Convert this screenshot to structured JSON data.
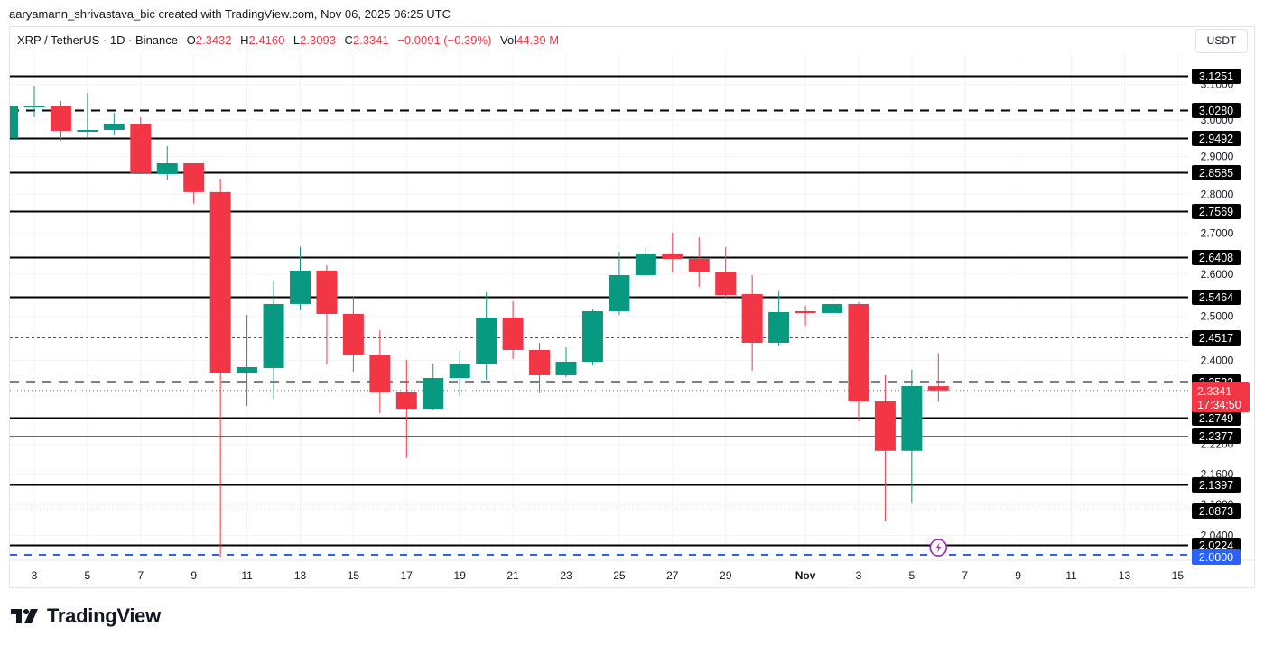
{
  "caption": "aaryamann_shrivastava_bic created with TradingView.com, Nov 06, 2025 06:25 UTC",
  "legend": {
    "symbol": "XRP / TetherUS · 1D · Binance",
    "open_label": "O",
    "open": "2.3432",
    "high_label": "H",
    "high": "2.4160",
    "low_label": "L",
    "low": "2.3093",
    "close_label": "C",
    "close": "2.3341",
    "change": "−0.0091 (−0.39%)",
    "vol_label": "Vol",
    "vol": "44.39 M"
  },
  "currency_button": "USDT",
  "brand": "TradingView",
  "colors": {
    "up": "#089981",
    "down": "#f23645",
    "level_line": "#000000",
    "blue_line": "#2962ff",
    "alert_purple": "#9c27b0"
  },
  "chart_data": {
    "type": "candlestick",
    "title": "XRP / TetherUS · 1D · Binance",
    "xlabel": "",
    "ylabel": "USDT",
    "scale": "log",
    "ylim": [
      1.9988,
      3.16
    ],
    "x_ticks": [
      "3",
      "5",
      "7",
      "9",
      "11",
      "13",
      "15",
      "17",
      "19",
      "21",
      "23",
      "25",
      "27",
      "29",
      "Nov",
      "3",
      "5",
      "7",
      "9",
      "11",
      "13",
      "15"
    ],
    "y_ticks": [
      "3.1000",
      "3.0000",
      "2.9000",
      "2.8000",
      "2.7000",
      "2.6000",
      "2.5000",
      "2.4000",
      "2.2200",
      "2.1600",
      "2.1000",
      "2.0400"
    ],
    "candles": [
      {
        "date": "Oct 2",
        "o": 2.9499,
        "h": 3.04,
        "l": 2.9499,
        "c": 3.04
      },
      {
        "date": "Oct 3",
        "o": 3.04,
        "h": 3.0965,
        "l": 3.0071,
        "c": 3.04
      },
      {
        "date": "Oct 4",
        "o": 3.04,
        "h": 3.0527,
        "l": 2.9425,
        "c": 2.9697
      },
      {
        "date": "Oct 5",
        "o": 2.9721,
        "h": 3.0758,
        "l": 2.9524,
        "c": 2.9721
      },
      {
        "date": "Oct 6",
        "o": 2.9721,
        "h": 3.0197,
        "l": 2.9573,
        "c": 2.9896
      },
      {
        "date": "Oct 7",
        "o": 2.9896,
        "h": 3.0071,
        "l": 2.8552,
        "c": 2.8552
      },
      {
        "date": "Oct 8",
        "o": 2.8528,
        "h": 2.9277,
        "l": 2.8362,
        "c": 2.8815
      },
      {
        "date": "Oct 9",
        "o": 2.8815,
        "h": 2.8815,
        "l": 2.7752,
        "c": 2.8056
      },
      {
        "date": "Oct 10",
        "o": 2.8056,
        "h": 2.8409,
        "l": 1.9988,
        "c": 2.373
      },
      {
        "date": "Oct 11",
        "o": 2.373,
        "h": 2.5036,
        "l": 2.3006,
        "c": 2.385
      },
      {
        "date": "Oct 12",
        "o": 2.383,
        "h": 2.5845,
        "l": 2.3161,
        "c": 2.5289
      },
      {
        "date": "Oct 13",
        "o": 2.5289,
        "h": 2.6658,
        "l": 2.5141,
        "c": 2.6083
      },
      {
        "date": "Oct 14",
        "o": 2.6083,
        "h": 2.6215,
        "l": 2.391,
        "c": 2.5057
      },
      {
        "date": "Oct 15",
        "o": 2.5057,
        "h": 2.5458,
        "l": 2.375,
        "c": 2.4131
      },
      {
        "date": "Oct 16",
        "o": 2.4131,
        "h": 2.4683,
        "l": 2.2853,
        "c": 2.3297
      },
      {
        "date": "Oct 17",
        "o": 2.3297,
        "h": 2.401,
        "l": 2.1921,
        "c": 2.2949
      },
      {
        "date": "Oct 18",
        "o": 2.2949,
        "h": 2.393,
        "l": 2.291,
        "c": 2.3611
      },
      {
        "date": "Oct 19",
        "o": 2.3611,
        "h": 2.4212,
        "l": 2.3219,
        "c": 2.391
      },
      {
        "date": "Oct 20",
        "o": 2.391,
        "h": 2.5565,
        "l": 2.3572,
        "c": 2.4973
      },
      {
        "date": "Oct 21",
        "o": 2.4973,
        "h": 2.5352,
        "l": 2.403,
        "c": 2.4232
      },
      {
        "date": "Oct 22",
        "o": 2.4232,
        "h": 2.4395,
        "l": 2.3278,
        "c": 2.3671
      },
      {
        "date": "Oct 23",
        "o": 2.3671,
        "h": 2.4293,
        "l": 2.3631,
        "c": 2.397
      },
      {
        "date": "Oct 24",
        "o": 2.397,
        "h": 2.5162,
        "l": 2.389,
        "c": 2.512
      },
      {
        "date": "Oct 25",
        "o": 2.512,
        "h": 2.6546,
        "l": 2.5036,
        "c": 2.5975
      },
      {
        "date": "Oct 26",
        "o": 2.5975,
        "h": 2.6658,
        "l": 2.5953,
        "c": 2.648
      },
      {
        "date": "Oct 27",
        "o": 2.648,
        "h": 2.7017,
        "l": 2.604,
        "c": 2.6369
      },
      {
        "date": "Oct 28",
        "o": 2.6369,
        "h": 2.6904,
        "l": 2.5694,
        "c": 2.6062
      },
      {
        "date": "Oct 29",
        "o": 2.6062,
        "h": 2.6658,
        "l": 2.5395,
        "c": 2.5501
      },
      {
        "date": "Oct 30",
        "o": 2.5523,
        "h": 2.5975,
        "l": 2.377,
        "c": 2.4395
      },
      {
        "date": "Oct 31",
        "o": 2.4395,
        "h": 2.5586,
        "l": 2.4334,
        "c": 2.5099
      },
      {
        "date": "Nov 1",
        "o": 2.512,
        "h": 2.5247,
        "l": 2.4786,
        "c": 2.5078
      },
      {
        "date": "Nov 2",
        "o": 2.5078,
        "h": 2.5586,
        "l": 2.4807,
        "c": 2.5289
      },
      {
        "date": "Nov 3",
        "o": 2.5289,
        "h": 2.5331,
        "l": 2.2682,
        "c": 2.3102
      },
      {
        "date": "Nov 4",
        "o": 2.3102,
        "h": 2.3671,
        "l": 2.0669,
        "c": 2.2068
      },
      {
        "date": "Nov 5",
        "o": 2.2068,
        "h": 2.379,
        "l": 2.1018,
        "c": 2.3434
      },
      {
        "date": "Nov 6",
        "o": 2.3432,
        "h": 2.416,
        "l": 2.3093,
        "c": 2.3341
      }
    ],
    "levels": [
      {
        "price": 3.1251,
        "label": "3.1251",
        "style": "solid"
      },
      {
        "price": 3.028,
        "label": "3.0280",
        "style": "dashed"
      },
      {
        "price": 2.9492,
        "label": "2.9492",
        "style": "solid"
      },
      {
        "price": 2.8585,
        "label": "2.8585",
        "style": "solid"
      },
      {
        "price": 2.7569,
        "label": "2.7569",
        "style": "solid"
      },
      {
        "price": 2.6408,
        "label": "2.6408",
        "style": "solid"
      },
      {
        "price": 2.5464,
        "label": "2.5464",
        "style": "solid"
      },
      {
        "price": 2.4517,
        "label": "2.4517",
        "style": "dotted"
      },
      {
        "price": 2.3523,
        "label": "2.3523",
        "style": "dashed"
      },
      {
        "price": 2.2749,
        "label": "2.2749",
        "style": "solid"
      },
      {
        "price": 2.2377,
        "label": "2.2377",
        "style": "thin"
      },
      {
        "price": 2.1397,
        "label": "2.1397",
        "style": "solid"
      },
      {
        "price": 2.0873,
        "label": "2.0873",
        "style": "dotted"
      },
      {
        "price": 2.0224,
        "label": "2.0224",
        "style": "solid"
      }
    ],
    "blue_level": {
      "price": 2.0,
      "label": "2.0000"
    },
    "current_price": {
      "price": 2.3341,
      "label": "2.3341",
      "countdown": "17:34:50"
    },
    "annotations": [
      "lightning alert marker near Nov 6 at 2.0224"
    ]
  }
}
